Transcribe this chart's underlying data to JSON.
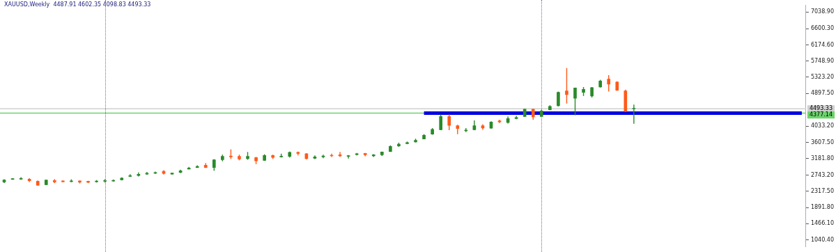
{
  "chart_data": {
    "type": "candlestick",
    "title": "XAUUSD,Weekly  4487.91 4602.35 4098.83 4493.33",
    "categories": [
      null,
      null,
      null,
      null,
      null,
      null,
      null,
      null,
      null,
      null,
      null,
      null,
      null,
      null,
      null,
      null,
      null,
      null,
      null,
      null,
      null,
      null,
      null,
      null,
      null,
      null,
      null,
      null,
      null,
      null,
      null,
      null,
      null,
      null,
      null,
      null,
      null,
      null,
      null,
      null,
      null,
      null,
      null,
      null,
      null,
      null,
      null,
      null,
      null,
      null,
      null,
      null,
      null,
      null,
      null,
      null,
      null,
      null,
      null,
      null,
      null,
      null,
      null,
      null,
      null,
      null,
      null,
      null,
      null,
      null,
      null,
      null,
      null,
      null,
      null,
      null,
      null,
      null,
      null,
      null,
      null,
      null,
      null,
      null,
      null,
      null,
      null,
      null,
      null,
      null,
      null,
      null,
      null,
      null,
      null,
      null
    ],
    "ohlc": [
      [
        2565,
        2635,
        2535,
        2615
      ],
      [
        2635,
        2665,
        2625,
        2655
      ],
      [
        2640,
        2690,
        2625,
        2660
      ],
      [
        2640,
        2665,
        2565,
        2595
      ],
      [
        2585,
        2605,
        2465,
        2480
      ],
      [
        2490,
        2625,
        2485,
        2615
      ],
      [
        2605,
        2640,
        2535,
        2565
      ],
      [
        2595,
        2605,
        2560,
        2570
      ],
      [
        2575,
        2635,
        2560,
        2590
      ],
      [
        2595,
        2605,
        2525,
        2560
      ],
      [
        2585,
        2595,
        2535,
        2555
      ],
      [
        2570,
        2615,
        2550,
        2585
      ],
      [
        2585,
        2640,
        2550,
        2600
      ],
      [
        2590,
        2630,
        2575,
        2605
      ],
      [
        2620,
        2685,
        2610,
        2665
      ],
      [
        2710,
        2770,
        2695,
        2730
      ],
      [
        2735,
        2815,
        2710,
        2770
      ],
      [
        2770,
        2830,
        2755,
        2795
      ],
      [
        2795,
        2840,
        2780,
        2805
      ],
      [
        2845,
        2875,
        2760,
        2790
      ],
      [
        2770,
        2810,
        2760,
        2800
      ],
      [
        2815,
        2890,
        2795,
        2860
      ],
      [
        2905,
        2960,
        2900,
        2935
      ],
      [
        2945,
        3005,
        2935,
        2975
      ],
      [
        3005,
        3065,
        2935,
        2945
      ],
      [
        2945,
        3165,
        2860,
        3150
      ],
      [
        3150,
        3285,
        3110,
        3240
      ],
      [
        3250,
        3425,
        3170,
        3225
      ],
      [
        3240,
        3285,
        3135,
        3170
      ],
      [
        3180,
        3355,
        3150,
        3240
      ],
      [
        3210,
        3225,
        3035,
        3120
      ],
      [
        3135,
        3295,
        3120,
        3265
      ],
      [
        3265,
        3285,
        3170,
        3210
      ],
      [
        3225,
        3310,
        3210,
        3240
      ],
      [
        3240,
        3365,
        3210,
        3345
      ],
      [
        3345,
        3365,
        3265,
        3315
      ],
      [
        3310,
        3325,
        3160,
        3180
      ],
      [
        3190,
        3265,
        3170,
        3225
      ],
      [
        3225,
        3285,
        3190,
        3250
      ],
      [
        3260,
        3310,
        3225,
        3250
      ],
      [
        3280,
        3355,
        3225,
        3250
      ],
      [
        3240,
        3275,
        3180,
        3260
      ],
      [
        3285,
        3330,
        3265,
        3310
      ],
      [
        3320,
        3330,
        3240,
        3280
      ],
      [
        3250,
        3295,
        3225,
        3280
      ],
      [
        3280,
        3365,
        3250,
        3355
      ],
      [
        3365,
        3530,
        3355,
        3500
      ],
      [
        3515,
        3600,
        3490,
        3560
      ],
      [
        3575,
        3630,
        3560,
        3600
      ],
      [
        3620,
        3705,
        3605,
        3660
      ],
      [
        3695,
        3825,
        3690,
        3795
      ],
      [
        3825,
        3985,
        3810,
        3950
      ],
      [
        3940,
        4340,
        3930,
        4290
      ],
      [
        4290,
        4340,
        3930,
        4055
      ],
      [
        4045,
        4070,
        3825,
        3970
      ],
      [
        3910,
        3985,
        3880,
        3930
      ],
      [
        3940,
        4185,
        3930,
        4045
      ],
      [
        4045,
        4085,
        3940,
        3985
      ],
      [
        3980,
        4165,
        3970,
        4145
      ],
      [
        4175,
        4205,
        4115,
        4145
      ],
      [
        4130,
        4290,
        4105,
        4235
      ],
      [
        4235,
        4305,
        4220,
        4260
      ],
      [
        4290,
        4495,
        4280,
        4480
      ],
      [
        4480,
        4495,
        4205,
        4280
      ],
      [
        4290,
        4465,
        4280,
        4435
      ],
      [
        4465,
        4585,
        4455,
        4555
      ],
      [
        4570,
        4945,
        4555,
        4925
      ],
      [
        4965,
        5565,
        4630,
        4865
      ],
      [
        4770,
        5050,
        4320,
        5040
      ],
      [
        4925,
        5065,
        4830,
        5005
      ],
      [
        4830,
        5065,
        4790,
        5050
      ],
      [
        5065,
        5255,
        5050,
        5225
      ],
      [
        5275,
        5375,
        4945,
        5140
      ],
      [
        5195,
        5215,
        4965,
        4980
      ],
      [
        4965,
        4995,
        4410,
        4420
      ],
      [
        4487.91,
        4602.35,
        4098.83,
        4493.33
      ],
      null,
      null,
      null,
      null,
      null,
      null,
      null,
      null,
      null,
      null,
      null,
      null,
      null,
      null,
      null,
      null,
      null,
      null,
      null,
      null
    ],
    "colors": [
      "#2a8a2a",
      "#2a8a2a",
      "#2a8a2a",
      "#ff5a1a",
      "#ff5a1a",
      "#2a8a2a",
      "#ff5a1a",
      "#ff5a1a",
      "#2a8a2a",
      "#ff5a1a",
      "#ff5a1a",
      "#2a8a2a",
      "#2a8a2a",
      "#2a8a2a",
      "#2a8a2a",
      "#2a8a2a",
      "#2a8a2a",
      "#2a8a2a",
      "#2a8a2a",
      "#ff5a1a",
      "#2a8a2a",
      "#2a8a2a",
      "#2a8a2a",
      "#2a8a2a",
      "#ff5a1a",
      "#2a8a2a",
      "#2a8a2a",
      "#ff5a1a",
      "#ff5a1a",
      "#2a8a2a",
      "#ff5a1a",
      "#2a8a2a",
      "#ff5a1a",
      "#2a8a2a",
      "#2a8a2a",
      "#ff5a1a",
      "#ff5a1a",
      "#2a8a2a",
      "#2a8a2a",
      "#ff5a1a",
      "#ff5a1a",
      "#2a8a2a",
      "#2a8a2a",
      "#ff5a1a",
      "#2a8a2a",
      "#2a8a2a",
      "#2a8a2a",
      "#2a8a2a",
      "#2a8a2a",
      "#2a8a2a",
      "#2a8a2a",
      "#2a8a2a",
      "#2a8a2a",
      "#ff5a1a",
      "#ff5a1a",
      "#2a8a2a",
      "#2a8a2a",
      "#ff5a1a",
      "#2a8a2a",
      "#ff5a1a",
      "#2a8a2a",
      "#2a8a2a",
      "#2a8a2a",
      "#ff5a1a",
      "#2a8a2a",
      "#2a8a2a",
      "#2a8a2a",
      "#ff5a1a",
      "#2a8a2a",
      "#2a8a2a",
      "#2a8a2a",
      "#2a8a2a",
      "#ff5a1a",
      "#ff5a1a",
      "#ff5a1a",
      "#2a8a2a",
      null,
      null,
      null,
      null,
      null,
      null,
      null,
      null,
      null,
      null,
      null,
      null,
      null,
      null,
      null,
      null,
      null,
      null,
      null,
      null
    ],
    "series": [
      {
        "type": "line",
        "color": "#0000e0",
        "values": [
          null,
          null,
          null,
          null,
          null,
          null,
          null,
          null,
          null,
          null,
          null,
          null,
          null,
          null,
          null,
          null,
          null,
          null,
          null,
          null,
          null,
          null,
          null,
          null,
          null,
          null,
          null,
          null,
          null,
          null,
          null,
          null,
          null,
          null,
          null,
          null,
          null,
          null,
          null,
          null,
          null,
          null,
          null,
          null,
          null,
          null,
          null,
          null,
          null,
          null,
          4380,
          4380,
          4380,
          4380,
          4380,
          4380,
          4380,
          4380,
          4380,
          4380,
          4380,
          4380,
          4380,
          4380,
          4380,
          4380,
          4380,
          4380,
          4380,
          4380,
          4380,
          4380,
          4380,
          4380,
          4380,
          4380,
          4380,
          4380,
          4380,
          4380,
          4380,
          4380,
          4380,
          4380,
          4380,
          4380,
          4380,
          4380,
          4380,
          4380,
          4380,
          4380,
          4380,
          4380,
          4380,
          4380
        ]
      }
    ],
    "ylim": [
      864,
      7214
    ],
    "yticks": [
      {
        "value": 7038.9,
        "label": "7038.90"
      },
      {
        "value": 6600.3,
        "label": "6600.30"
      },
      {
        "value": 6174.6,
        "label": "6174.60"
      },
      {
        "value": 5748.9,
        "label": "5748.90"
      },
      {
        "value": 5323.2,
        "label": "5323.20"
      },
      {
        "value": 4897.5,
        "label": "4897.50"
      },
      {
        "value": 4033.2,
        "label": "4033.20"
      },
      {
        "value": 3607.5,
        "label": "3607.50"
      },
      {
        "value": 3181.8,
        "label": "3181.80"
      },
      {
        "value": 2743.2,
        "label": "2743.20"
      },
      {
        "value": 2317.5,
        "label": "2317.50"
      },
      {
        "value": 1891.8,
        "label": "1891.80"
      },
      {
        "value": 1466.1,
        "label": "1466.10"
      },
      {
        "value": 1040.4,
        "label": "1040.40"
      }
    ],
    "ref_lines": [
      {
        "axis": "y",
        "value": 4493.33,
        "label": "4493.33",
        "color": "#d0d0d0"
      },
      {
        "axis": "y",
        "value": 4377.14,
        "label": "4377.14",
        "color": "#6cd46c"
      }
    ],
    "tick_labels": "y",
    "grid": false,
    "legend": false
  }
}
